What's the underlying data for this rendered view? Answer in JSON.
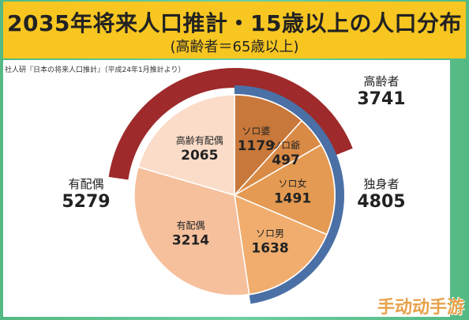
{
  "header": {
    "title": "2035年将来人口推計・15歳以上の人口分布",
    "subtitle": "(高齢者＝65歳以上)"
  },
  "source": "社人研『日本の将来人口推計』（平成24年1月推計より）",
  "watermark": "手动动手游",
  "side_labels": {
    "elderly": {
      "name": "高齢者",
      "value": "3741"
    },
    "single": {
      "name": "独身者",
      "value": "4805"
    },
    "married": {
      "name": "有配偶",
      "value": "5279"
    }
  },
  "chart_data": {
    "type": "pie",
    "slices": [
      {
        "label": "ソロ婆",
        "value": 1179,
        "color": "#c8783a"
      },
      {
        "label": "ソロ爺",
        "value": 497,
        "color": "#d98a45"
      },
      {
        "label": "ソロ女",
        "value": 1491,
        "color": "#e49a52"
      },
      {
        "label": "ソロ男",
        "value": 1638,
        "color": "#f0ad6e"
      },
      {
        "label": "有配偶",
        "value": 3214,
        "color": "#f6c09d"
      },
      {
        "label": "高齢有配偶",
        "value": 2065,
        "color": "#fbdcc8"
      }
    ],
    "groups": [
      {
        "name": "高齢者",
        "value": 3741,
        "color": "#9e2a2b"
      },
      {
        "name": "独身者",
        "value": 4805,
        "color": "#4a70a6"
      },
      {
        "name": "有配偶",
        "value": 5279
      }
    ]
  }
}
